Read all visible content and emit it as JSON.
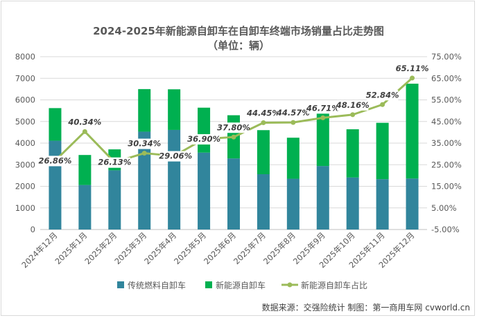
{
  "chart_data": {
    "type": "bar",
    "title": "2024-2025年新能源自卸车在自卸车终端市场销量占比走势图",
    "subtitle": "（单位：辆）",
    "categories": [
      "2024年12月",
      "2025年1月",
      "2025年2月",
      "2025年3月",
      "2025年4月",
      "2025年5月",
      "2025年6月",
      "2025年7月",
      "2025年8月",
      "2025年9月",
      "2025年10月",
      "2025年11月",
      "2025年12月"
    ],
    "series": [
      {
        "name": "传统燃料自卸车",
        "type": "bar",
        "stack": "total",
        "color": "#31859c",
        "values": [
          4110,
          2060,
          2740,
          4530,
          4610,
          3560,
          3290,
          2560,
          2350,
          2940,
          2410,
          2330,
          2360
        ]
      },
      {
        "name": "新能源自卸车",
        "type": "bar",
        "stack": "total",
        "color": "#00b050",
        "values": [
          1510,
          1390,
          970,
          1970,
          1880,
          2080,
          2000,
          2040,
          1900,
          2570,
          2230,
          2610,
          4390
        ]
      },
      {
        "name": "新能源自卸车占比",
        "type": "line",
        "axis": "right",
        "color": "#9bbb59",
        "values": [
          26.86,
          40.34,
          26.13,
          30.34,
          29.06,
          36.9,
          37.8,
          44.45,
          44.57,
          46.71,
          48.16,
          52.84,
          65.11
        ],
        "labels": [
          "26.86%",
          "40.34%",
          "26.13%",
          "30.34%",
          "29.06%",
          "36.90%",
          "37.80%",
          "44.45%",
          "44.57%",
          "46.71%",
          "48.16%",
          "52.84%",
          "65.11%"
        ]
      }
    ],
    "ylim": [
      0,
      8000
    ],
    "y_ticks": [
      "0",
      "1000",
      "2000",
      "3000",
      "4000",
      "5000",
      "6000",
      "7000",
      "8000"
    ],
    "y2lim": [
      -5,
      75
    ],
    "y2_ticks": [
      "-5.00%",
      "5.00%",
      "15.00%",
      "25.00%",
      "35.00%",
      "45.00%",
      "55.00%",
      "65.00%",
      "75.00%"
    ],
    "legend_position": "bottom"
  },
  "source_text": "数据来源：交强险统计  制图：第一商用车网 cvworld.cn"
}
